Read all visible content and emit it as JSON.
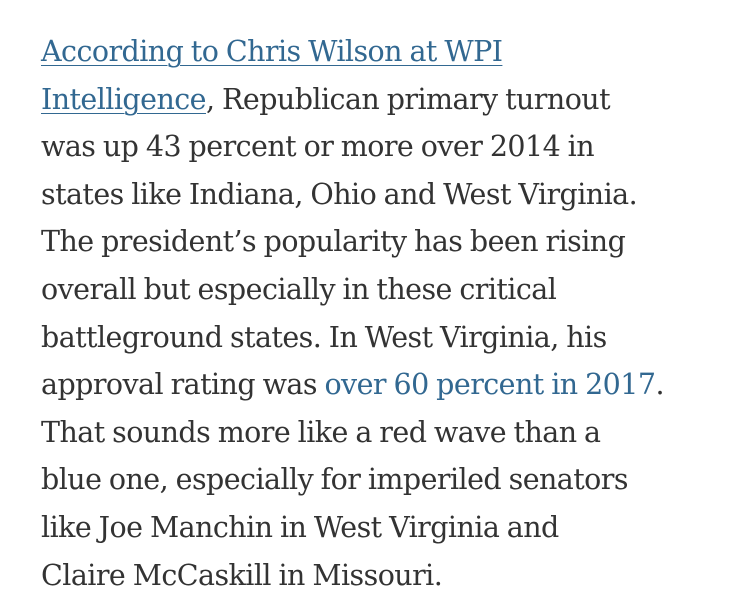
{
  "paragraph": {
    "link1_part1": "According to Chris Wilson at WPI",
    "link1_part2": "Intelligence",
    "line2_rest": ", Republican primary turnout",
    "line3": "was up 43 percent or more over 2014 in",
    "line4": "states like Indiana, Ohio and West Virginia.",
    "line5": "The president’s popularity has been rising",
    "line6": "overall but especially in these critical",
    "line7": "battleground states. In West Virginia, his",
    "line8_start": "approval rating was ",
    "link2": "over 60 percent in 2017",
    "line8_end": ".",
    "line9": "That sounds more like a red wave than a",
    "line10": "blue one, especially for imperiled senators",
    "line11": "like Joe Manchin in West Virginia and",
    "line12": "Claire McCaskill in Missouri."
  },
  "colors": {
    "text": "#333333",
    "link": "#326891",
    "background": "#ffffff"
  }
}
